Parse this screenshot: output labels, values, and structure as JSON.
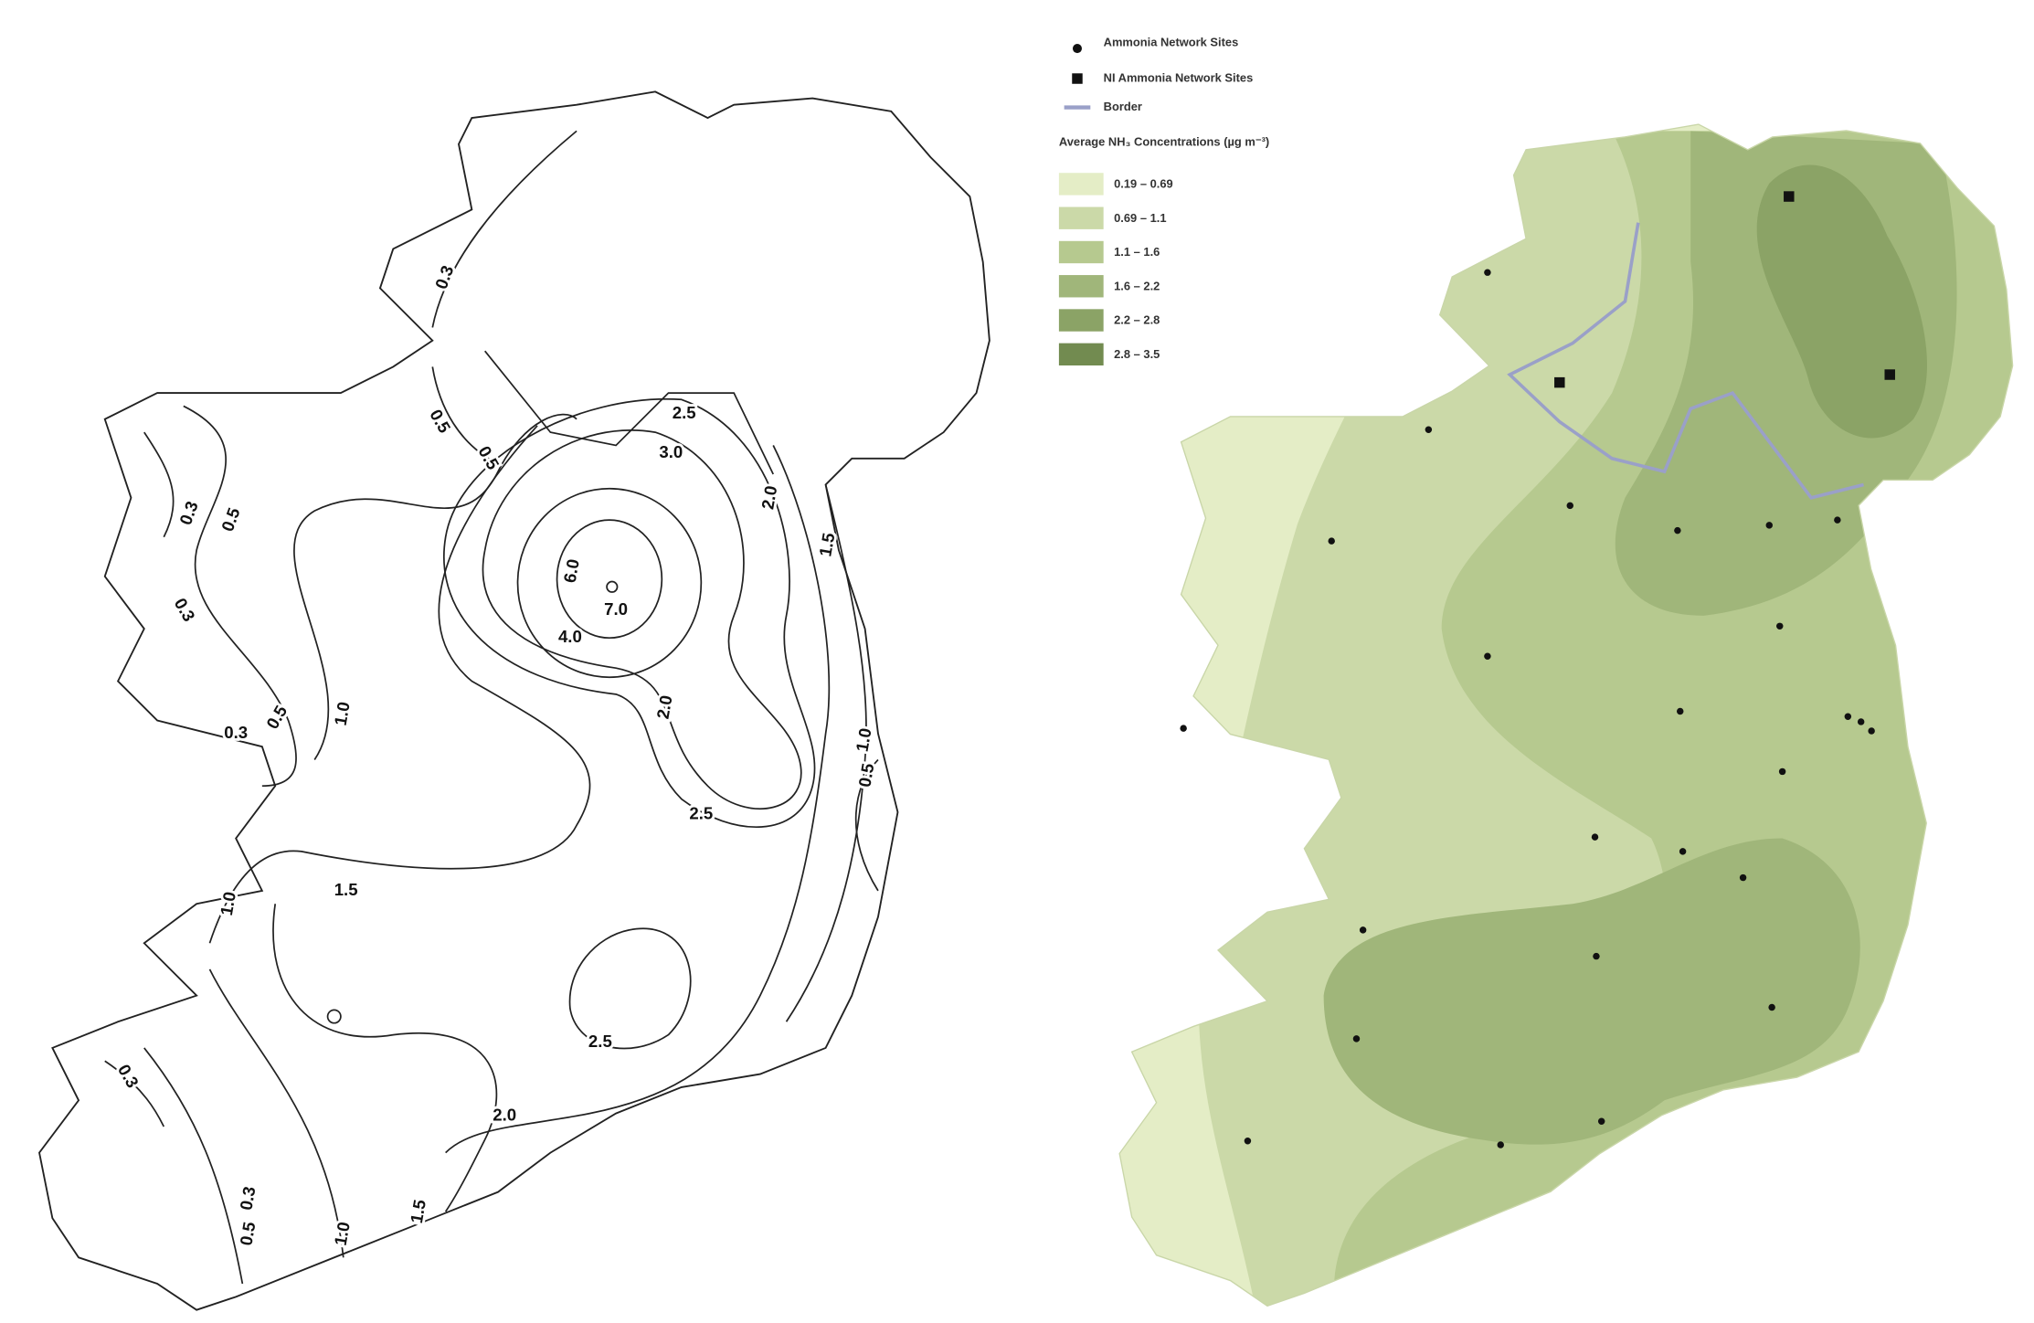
{
  "left_map": {
    "contour_labels": [
      "0.3",
      "0.5",
      "0.5",
      "0.3",
      "0.5",
      "0.3",
      "0.5",
      "0.3",
      "1.0",
      "2.5",
      "3.0",
      "2.0",
      "1.5",
      "6.0",
      "7.0",
      "4.0",
      "2.0",
      "2.5",
      "1.0",
      "0.5",
      "1.5",
      "1.0",
      "2.5",
      "2.0",
      "0.3",
      "0.3",
      "0.5",
      "1.0",
      "1.5"
    ]
  },
  "right_map": {
    "legend_symbols": [
      {
        "label": "Ammonia Network Sites"
      },
      {
        "label": "NI Ammonia Network Sites"
      },
      {
        "label": "Border"
      }
    ],
    "legend_title": "Average NH₃ Concentrations (µg m⁻³)",
    "classes": [
      {
        "label": "0.19 – 0.69",
        "color": "#e4edc6"
      },
      {
        "label": "0.69 – 1.1",
        "color": "#cbd9a8"
      },
      {
        "label": "1.1 – 1.6",
        "color": "#b6c98f"
      },
      {
        "label": "1.6 – 2.2",
        "color": "#a0b67a"
      },
      {
        "label": "2.2 – 2.8",
        "color": "#8ba366"
      },
      {
        "label": "2.8 – 3.5",
        "color": "#728b50"
      }
    ]
  }
}
